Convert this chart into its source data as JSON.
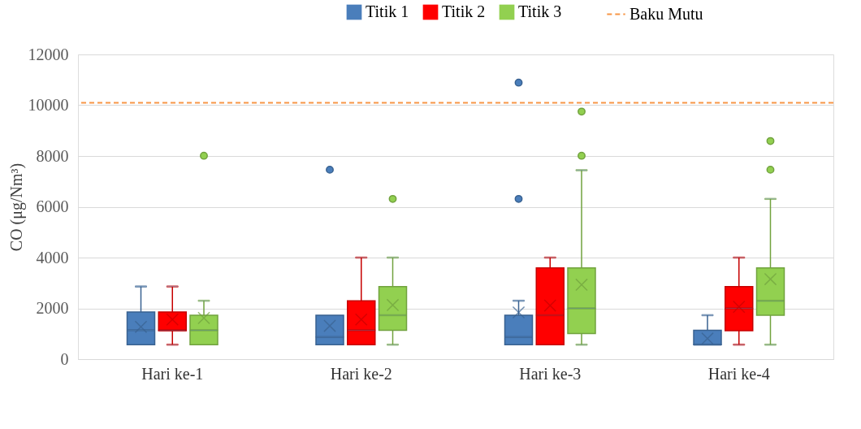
{
  "chart_data": {
    "type": "box",
    "ylabel": "CO  (μg/Nm³)",
    "categories": [
      "Hari ke-1",
      "Hari ke-2",
      "Hari ke-3",
      "Hari ke-4"
    ],
    "series": [
      {
        "name": "Titik 1",
        "color": "#4a7ebb",
        "boxes": [
          {
            "low": 570,
            "q1": 570,
            "median": 1140,
            "q3": 1860,
            "high": 2860,
            "mean": 1270
          },
          {
            "low": 570,
            "q1": 570,
            "median": 870,
            "q3": 1730,
            "high": 1730,
            "mean": 1310,
            "outliers": [
              7460
            ]
          },
          {
            "low": 570,
            "q1": 570,
            "median": 870,
            "q3": 1730,
            "high": 2300,
            "mean": 1840,
            "outliers": [
              10890,
              6310
            ]
          },
          {
            "low": 570,
            "q1": 570,
            "median": 570,
            "q3": 1140,
            "high": 1730,
            "mean": 810
          }
        ]
      },
      {
        "name": "Titik 2",
        "color": "#ff0000",
        "boxes": [
          {
            "low": 570,
            "q1": 1120,
            "median": 1140,
            "q3": 1860,
            "high": 2860,
            "mean": 1560
          },
          {
            "low": 570,
            "q1": 570,
            "median": 1140,
            "q3": 2300,
            "high": 4000,
            "mean": 1560
          },
          {
            "low": 570,
            "q1": 570,
            "median": 1730,
            "q3": 3590,
            "high": 4000,
            "mean": 2110
          },
          {
            "low": 570,
            "q1": 1120,
            "median": 2000,
            "q3": 2860,
            "high": 4000,
            "mean": 2060
          }
        ]
      },
      {
        "name": "Titik 3",
        "color": "#92d050",
        "boxes": [
          {
            "low": 570,
            "q1": 570,
            "median": 1140,
            "q3": 1730,
            "high": 2300,
            "mean": 1620,
            "outliers": [
              8010
            ]
          },
          {
            "low": 570,
            "q1": 1140,
            "median": 1730,
            "q3": 2860,
            "high": 4000,
            "mean": 2130,
            "outliers": [
              6310
            ]
          },
          {
            "low": 570,
            "q1": 1010,
            "median": 2000,
            "q3": 3590,
            "high": 7440,
            "mean": 2930,
            "outliers": [
              9750,
              8010
            ]
          },
          {
            "low": 570,
            "q1": 1730,
            "median": 2300,
            "q3": 3590,
            "high": 6310,
            "mean": 3150,
            "outliers": [
              8590,
              7460
            ]
          }
        ]
      }
    ],
    "ylim": [
      0,
      12000
    ],
    "yticks": [
      0,
      2000,
      4000,
      6000,
      8000,
      10000,
      12000
    ],
    "ref_lines": [
      {
        "axis": "y",
        "value": 10100,
        "label": "Baku Mutu",
        "color": "#f79646",
        "line_style": "dashed"
      }
    ],
    "grid": "y",
    "legend": "top",
    "marker": "circle"
  }
}
